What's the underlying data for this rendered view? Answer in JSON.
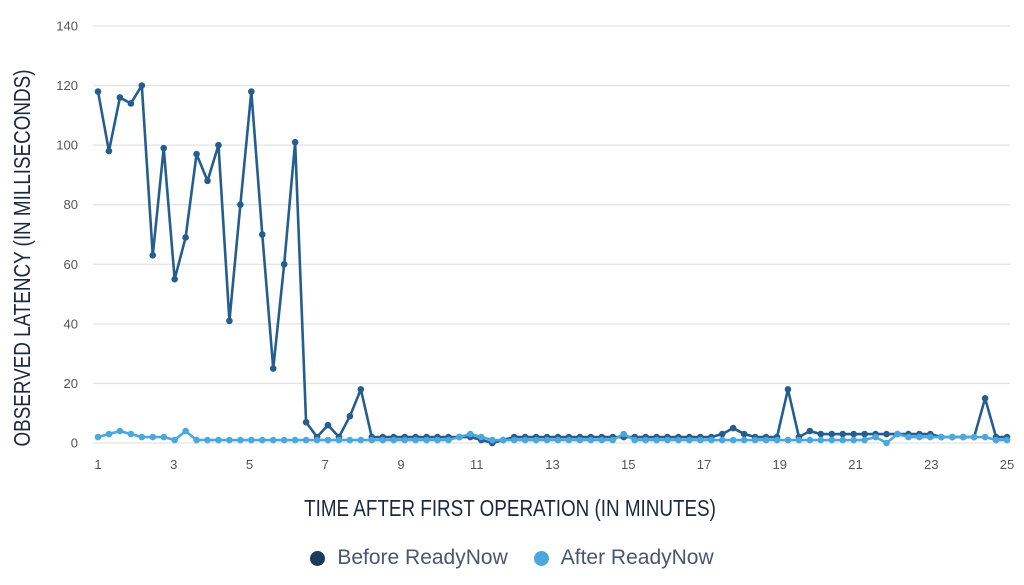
{
  "chart_data": {
    "type": "line",
    "xlabel": "TIME AFTER FIRST OPERATION (IN MINUTES)",
    "ylabel": "OBSERVED LATENCY (IN MILLISECONDS)",
    "xlim": [
      1,
      25
    ],
    "ylim": [
      0,
      140
    ],
    "x_ticks": [
      "1",
      "3",
      "5",
      "7",
      "9",
      "11",
      "13",
      "15",
      "17",
      "19",
      "21",
      "23",
      "25"
    ],
    "y_ticks": [
      "0",
      "20",
      "40",
      "60",
      "80",
      "100",
      "120",
      "140"
    ],
    "grid": true,
    "legend_position": "bottom",
    "series": [
      {
        "name": "Before ReadyNow",
        "color": "#255e8e",
        "legend_color": "#1b3a5c",
        "values": [
          118,
          98,
          116,
          114,
          120,
          63,
          99,
          55,
          69,
          97,
          88,
          100,
          41,
          80,
          118,
          70,
          25,
          60,
          101,
          7,
          2,
          6,
          2,
          9,
          18,
          2,
          2,
          2,
          2,
          2,
          2,
          2,
          2,
          2,
          2,
          1,
          0,
          1,
          2,
          2,
          2,
          2,
          2,
          2,
          2,
          2,
          2,
          2,
          2,
          2,
          2,
          2,
          2,
          2,
          2,
          2,
          2,
          3,
          5,
          3,
          2,
          2,
          2,
          18,
          2,
          4,
          3,
          3,
          3,
          3,
          3,
          3,
          3,
          3,
          3,
          3,
          3,
          2,
          2,
          2,
          2,
          15,
          2,
          2
        ]
      },
      {
        "name": "After ReadyNow",
        "color": "#4aa8de",
        "legend_color": "#4aa8de",
        "values": [
          2,
          3,
          4,
          3,
          2,
          2,
          2,
          1,
          4,
          1,
          1,
          1,
          1,
          1,
          1,
          1,
          1,
          1,
          1,
          1,
          1,
          1,
          1,
          1,
          1,
          1,
          1,
          1,
          1,
          1,
          1,
          1,
          1,
          2,
          3,
          2,
          1,
          1,
          1,
          1,
          1,
          1,
          1,
          1,
          1,
          1,
          1,
          1,
          3,
          1,
          1,
          1,
          1,
          1,
          1,
          1,
          1,
          1,
          1,
          1,
          1,
          1,
          1,
          1,
          1,
          1,
          1,
          1,
          1,
          1,
          1,
          2,
          0,
          3,
          2,
          2,
          2,
          2,
          2,
          2,
          2,
          2,
          1,
          1
        ]
      }
    ]
  }
}
